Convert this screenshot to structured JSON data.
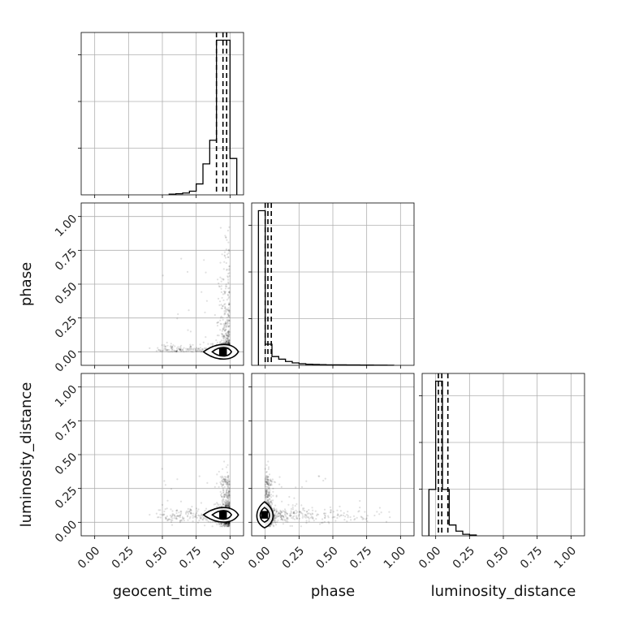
{
  "chart_data": {
    "type": "corner",
    "parameters": [
      "geocent_time",
      "phase",
      "luminosity_distance"
    ],
    "axis_labels": {
      "geocent_time": "geocent_time",
      "phase": "phase",
      "luminosity_distance": "luminosity_distance"
    },
    "range": [
      0,
      1
    ],
    "ticks": [
      0,
      0.25,
      0.5,
      0.75,
      1.0
    ],
    "tick_labels": [
      "0.00",
      "0.25",
      "0.50",
      "0.75",
      "1.00"
    ],
    "grid": true,
    "colors": {
      "line": "#000000",
      "scatter": "#000000",
      "grid": "#b0b0b0"
    },
    "histograms": {
      "geocent_time": {
        "bin_edges": [
          0.55,
          0.6,
          0.65,
          0.7,
          0.75,
          0.8,
          0.85,
          0.9,
          0.95,
          1.0,
          1.05
        ],
        "counts": [
          0.4,
          0.6,
          1.0,
          2,
          6,
          17,
          30,
          85,
          85,
          20
        ],
        "quantile_lines": [
          0.9,
          0.948,
          0.975
        ]
      },
      "phase": {
        "bin_edges": [
          -0.05,
          0.0,
          0.05,
          0.1,
          0.15,
          0.2,
          0.25,
          0.3,
          0.35,
          0.4,
          0.45,
          0.5,
          0.55,
          0.6,
          0.65,
          0.7,
          0.75,
          0.8,
          0.85,
          0.9,
          0.95
        ],
        "counts": [
          88,
          12,
          5,
          3.5,
          2.2,
          1.4,
          0.9,
          0.6,
          0.5,
          0.4,
          0.3,
          0.3,
          0.25,
          0.2,
          0.2,
          0.15,
          0.15,
          0.1,
          0.08,
          0.05
        ],
        "quantile_lines": [
          0.0,
          0.02,
          0.045
        ]
      },
      "luminosity_distance": {
        "bin_edges": [
          -0.05,
          0.0,
          0.05,
          0.1,
          0.15,
          0.2,
          0.25,
          0.3
        ],
        "counts": [
          30,
          100,
          30,
          7,
          3,
          1,
          0.5
        ],
        "quantile_lines": [
          0.02,
          0.045,
          0.09
        ]
      }
    },
    "contours": {
      "phase_vs_geocent_time": {
        "center": [
          0.948,
          0.0
        ],
        "levels": 3
      },
      "luminosity_distance_vs_geocent_time": {
        "center": [
          0.948,
          0.055
        ],
        "levels": 3
      },
      "luminosity_distance_vs_phase": {
        "center": [
          -0.005,
          0.055
        ],
        "levels": 3
      }
    }
  }
}
